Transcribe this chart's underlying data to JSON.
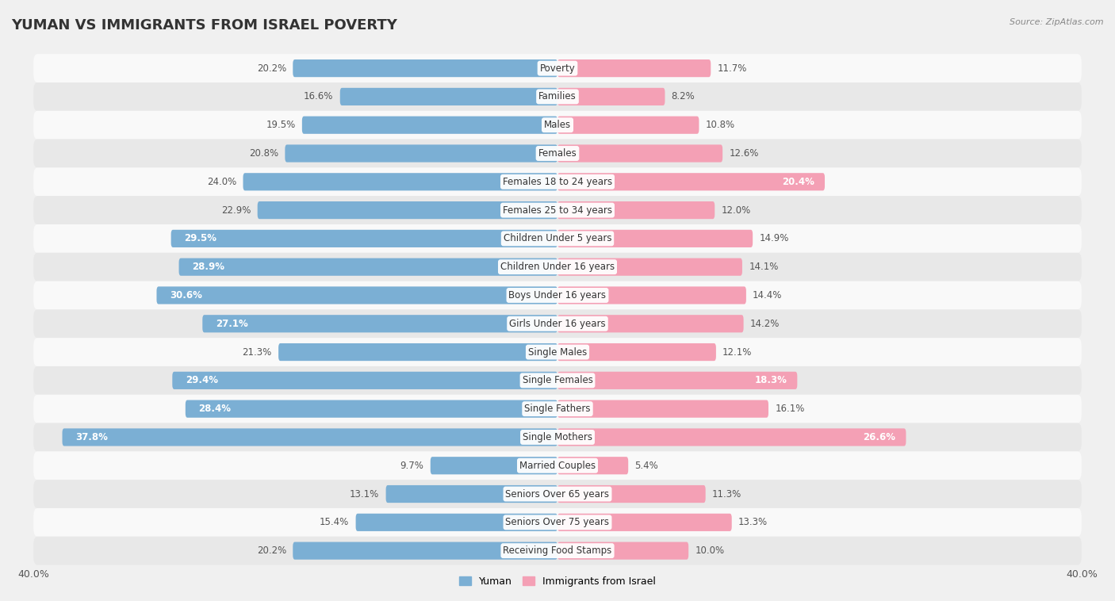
{
  "title": "YUMAN VS IMMIGRANTS FROM ISRAEL POVERTY",
  "source": "Source: ZipAtlas.com",
  "categories": [
    "Poverty",
    "Families",
    "Males",
    "Females",
    "Females 18 to 24 years",
    "Females 25 to 34 years",
    "Children Under 5 years",
    "Children Under 16 years",
    "Boys Under 16 years",
    "Girls Under 16 years",
    "Single Males",
    "Single Females",
    "Single Fathers",
    "Single Mothers",
    "Married Couples",
    "Seniors Over 65 years",
    "Seniors Over 75 years",
    "Receiving Food Stamps"
  ],
  "yuman_values": [
    20.2,
    16.6,
    19.5,
    20.8,
    24.0,
    22.9,
    29.5,
    28.9,
    30.6,
    27.1,
    21.3,
    29.4,
    28.4,
    37.8,
    9.7,
    13.1,
    15.4,
    20.2
  ],
  "israel_values": [
    11.7,
    8.2,
    10.8,
    12.6,
    20.4,
    12.0,
    14.9,
    14.1,
    14.4,
    14.2,
    12.1,
    18.3,
    16.1,
    26.6,
    5.4,
    11.3,
    13.3,
    10.0
  ],
  "yuman_color": "#7bafd4",
  "israel_color": "#f4a0b5",
  "yuman_label": "Yuman",
  "israel_label": "Immigrants from Israel",
  "bg_color": "#f0f0f0",
  "row_color_light": "#f9f9f9",
  "row_color_dark": "#e8e8e8",
  "axis_limit": 40.0,
  "bar_height": 0.62,
  "title_fontsize": 13,
  "label_fontsize": 8.5,
  "value_fontsize": 8.5,
  "inside_threshold_yuman": 25,
  "inside_threshold_israel": 18
}
